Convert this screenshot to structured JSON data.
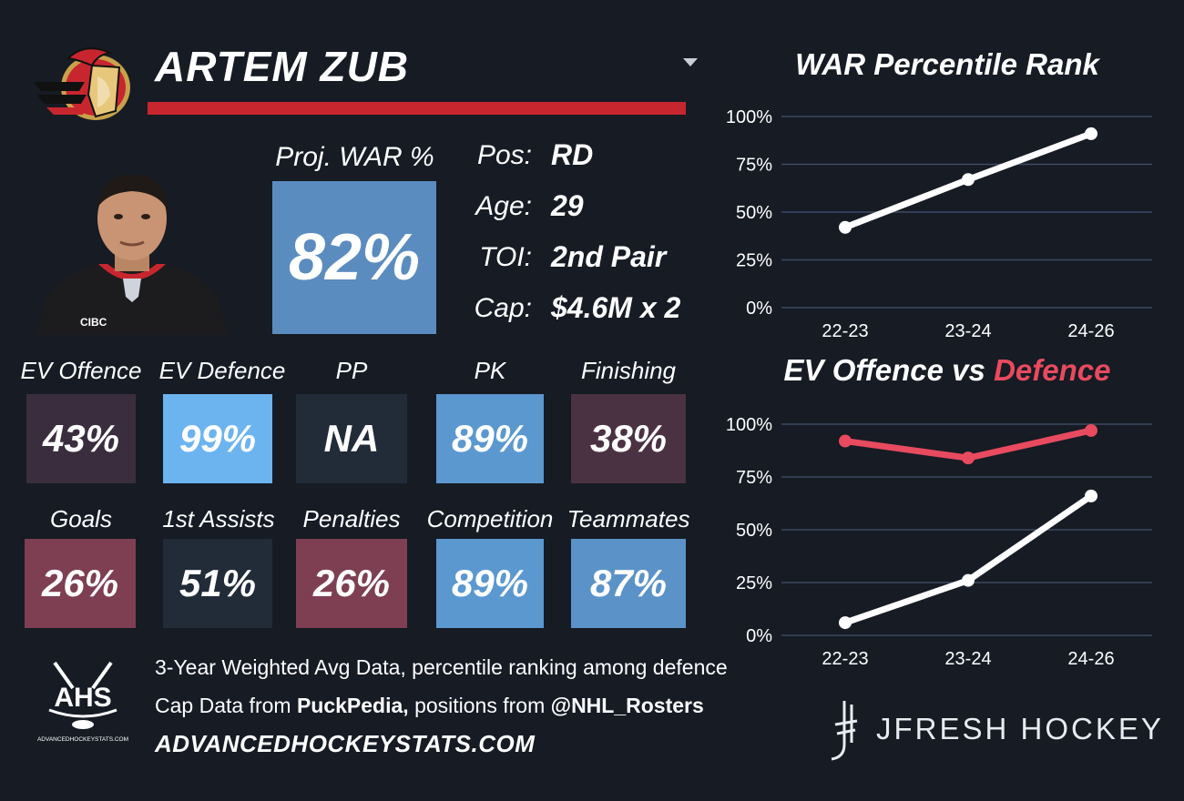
{
  "header": {
    "player_name": "ARTEM ZUB"
  },
  "colors": {
    "background": "#161b24",
    "accent_red": "#c8262f",
    "offence_line": "#ffffff",
    "defence_line": "#e84a5f"
  },
  "icons": {
    "logo": "senators-logo",
    "dropdown": "chevron-down-icon",
    "headshot": "player-headshot"
  },
  "projection": {
    "label": "Proj. WAR %",
    "value": "82%",
    "color": "#5b8cbf"
  },
  "info": [
    {
      "label": "Pos:",
      "value": "RD"
    },
    {
      "label": "Age:",
      "value": "29"
    },
    {
      "label": "TOI:",
      "value": "2nd Pair"
    },
    {
      "label": "Cap:",
      "value": "$4.6M x 2"
    }
  ],
  "tiles": [
    {
      "label": "EV Offence",
      "value": "43%",
      "color": "#3a2e3e"
    },
    {
      "label": "EV Defence",
      "value": "99%",
      "color": "#6cb4f0"
    },
    {
      "label": "PP",
      "value": "NA",
      "color": "#222b38"
    },
    {
      "label": "PK",
      "value": "89%",
      "color": "#5b98d0"
    },
    {
      "label": "Finishing",
      "value": "38%",
      "color": "#4b3242"
    },
    {
      "label": "Goals",
      "value": "26%",
      "color": "#7e3f52"
    },
    {
      "label": "1st Assists",
      "value": "51%",
      "color": "#222b38"
    },
    {
      "label": "Penalties",
      "value": "26%",
      "color": "#7e3f52"
    },
    {
      "label": "Competition",
      "value": "89%",
      "color": "#5b98d0"
    },
    {
      "label": "Teammates",
      "value": "87%",
      "color": "#5b93c8"
    }
  ],
  "footer": {
    "line1": "3-Year Weighted Avg Data, percentile ranking among defence",
    "line2_prefix": "Cap Data from ",
    "line2_source1": "PuckPedia,",
    "line2_mid": " positions from ",
    "line2_source2": "@NHL_Rosters",
    "url": "ADVANCEDHOCKEYSTATS.COM",
    "ahs_logo_text": "AHS",
    "ahs_logo_caption": "ADVANCEDHOCKEYSTATS.COM",
    "brand": "JFRESH HOCKEY"
  },
  "chart_data": [
    {
      "type": "line",
      "title": "WAR Percentile Rank",
      "categories": [
        "22-23",
        "23-24",
        "24-26"
      ],
      "series": [
        {
          "values": [
            42,
            67,
            91
          ],
          "color": "#ffffff"
        }
      ],
      "ylim": [
        0,
        100
      ],
      "yticks": [
        "0%",
        "25%",
        "50%",
        "75%",
        "100%"
      ],
      "grid": true
    },
    {
      "type": "line",
      "title_parts": [
        "EV Offence vs ",
        "Defence"
      ],
      "categories": [
        "22-23",
        "23-24",
        "24-26"
      ],
      "series": [
        {
          "values": [
            6,
            26,
            66
          ],
          "color": "#ffffff"
        },
        {
          "values": [
            92,
            84,
            97
          ],
          "color": "#e84a5f"
        }
      ],
      "ylim": [
        0,
        100
      ],
      "yticks": [
        "0%",
        "25%",
        "50%",
        "75%",
        "100%"
      ],
      "grid": true
    }
  ]
}
